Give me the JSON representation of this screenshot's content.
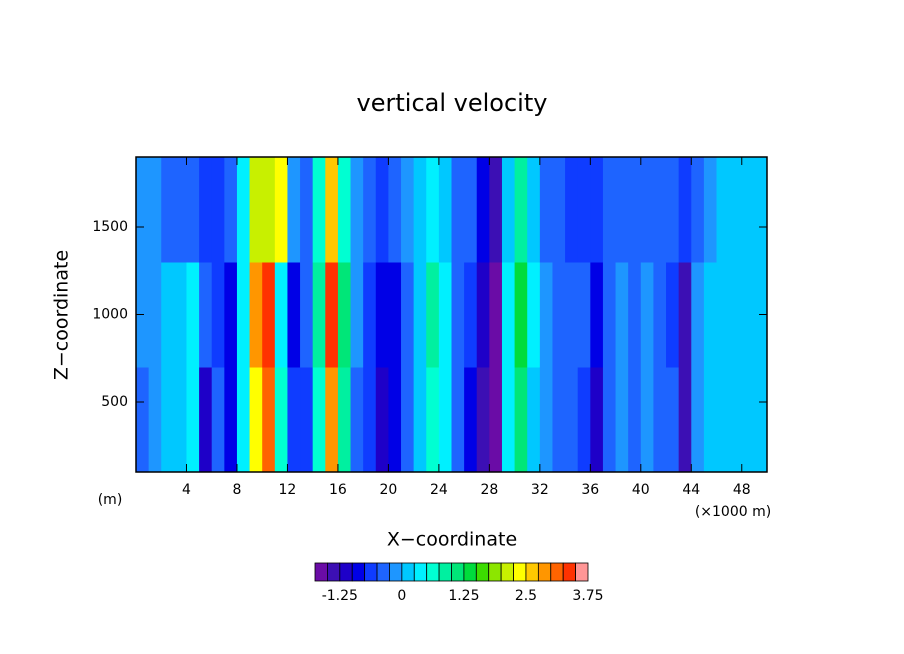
{
  "chart_data": {
    "type": "contour",
    "title": "vertical velocity",
    "xlabel": "X−coordinate",
    "ylabel": "Z−coordinate",
    "x_unit": "(×1000 m)",
    "y_unit": "(m)",
    "xlim": [
      0,
      50
    ],
    "ylim": [
      100,
      1900
    ],
    "xticks": [
      4,
      8,
      12,
      16,
      20,
      24,
      28,
      32,
      36,
      40,
      44,
      48
    ],
    "yticks": [
      500,
      1000,
      1500
    ],
    "x": [
      0.5,
      1.5,
      2.5,
      3.5,
      4.5,
      5.5,
      6.5,
      7.5,
      8.5,
      9.5,
      10.5,
      11.5,
      12.5,
      13.5,
      14.5,
      15.5,
      16.5,
      17.5,
      18.5,
      19.5,
      20.5,
      21.5,
      22.5,
      23.5,
      24.5,
      25.5,
      26.5,
      27.5,
      28.5,
      29.5,
      30.5,
      31.5,
      32.5,
      33.5,
      34.5,
      35.5,
      36.5,
      37.5,
      38.5,
      39.5,
      40.5,
      41.5,
      42.5,
      43.5,
      44.5,
      45.5,
      46.5,
      47.5,
      48.5,
      49.5
    ],
    "y": [
      400,
      1000,
      1600
    ],
    "field": [
      [
        -0.3,
        -0.2,
        0,
        0.1,
        0.3,
        -1.1,
        -0.4,
        -1.0,
        0.4,
        2.4,
        3.0,
        0.5,
        -0.7,
        -0.6,
        0.6,
        2.9,
        0.8,
        -0.3,
        -0.7,
        -1.1,
        -1.0,
        -0.3,
        0.1,
        0.7,
        0.3,
        -0.4,
        -0.8,
        -1.5,
        -1.8,
        0.3,
        1.0,
        0.2,
        -0.2,
        -0.3,
        -0.4,
        -0.6,
        -1.2,
        -0.3,
        -0.2,
        -0.4,
        -0.2,
        -0.3,
        -0.5,
        -1.4,
        -0.1,
        0,
        0.1,
        0.1,
        0,
        0
      ],
      [
        -0.2,
        -0.1,
        0.1,
        0.2,
        0.4,
        -0.3,
        -0.6,
        -0.9,
        0.3,
        2.8,
        3.4,
        0.4,
        -0.8,
        -0.5,
        0.8,
        3.3,
        1.0,
        -0.2,
        -0.6,
        -0.9,
        -0.8,
        -0.3,
        0.2,
        0.9,
        0.4,
        -0.3,
        -0.6,
        -1.2,
        -1.7,
        0.4,
        1.3,
        0.3,
        -0.2,
        -0.4,
        -0.3,
        -0.5,
        -0.9,
        -0.3,
        -0.2,
        -0.3,
        -0.1,
        -0.4,
        -0.6,
        -1.3,
        -0.2,
        0,
        0.1,
        0.1,
        0.1,
        0
      ],
      [
        -0.2,
        -0.2,
        -0.3,
        -0.4,
        -0.5,
        -0.6,
        -0.7,
        -0.5,
        0.4,
        2.2,
        2.0,
        2.3,
        -0.2,
        -0.5,
        0.5,
        2.6,
        0.6,
        -0.1,
        -0.4,
        -0.6,
        -0.5,
        -0.2,
        0,
        0.4,
        0.1,
        -0.3,
        -0.5,
        -0.9,
        -1.3,
        0.2,
        0.9,
        0.1,
        -0.3,
        -0.5,
        -0.6,
        -0.6,
        -0.7,
        -0.5,
        -0.4,
        -0.5,
        -0.3,
        -0.4,
        -0.5,
        -0.7,
        -0.3,
        -0.1,
        0,
        0,
        0,
        0
      ]
    ],
    "colorbar": {
      "levels": [
        -1.75,
        -1.5,
        -1.25,
        -1,
        -0.75,
        -0.5,
        -0.25,
        0,
        0.25,
        0.5,
        0.75,
        1,
        1.25,
        1.5,
        1.75,
        2,
        2.25,
        2.5,
        2.75,
        3,
        3.25,
        3.5,
        3.75
      ],
      "colors": [
        "#6a0ca6",
        "#3c0fb4",
        "#1e00c8",
        "#0000e6",
        "#0f3cff",
        "#1e64ff",
        "#1e96ff",
        "#00c8ff",
        "#00f0ff",
        "#00ffd2",
        "#00f0a0",
        "#00e678",
        "#00dc3c",
        "#3cdc00",
        "#8ce600",
        "#c8f000",
        "#ffff00",
        "#ffc800",
        "#ff9600",
        "#ff6400",
        "#ff3200",
        "#ff9696"
      ],
      "ticks": [
        -1.25,
        0,
        1.25,
        2.5,
        3.75
      ]
    }
  }
}
